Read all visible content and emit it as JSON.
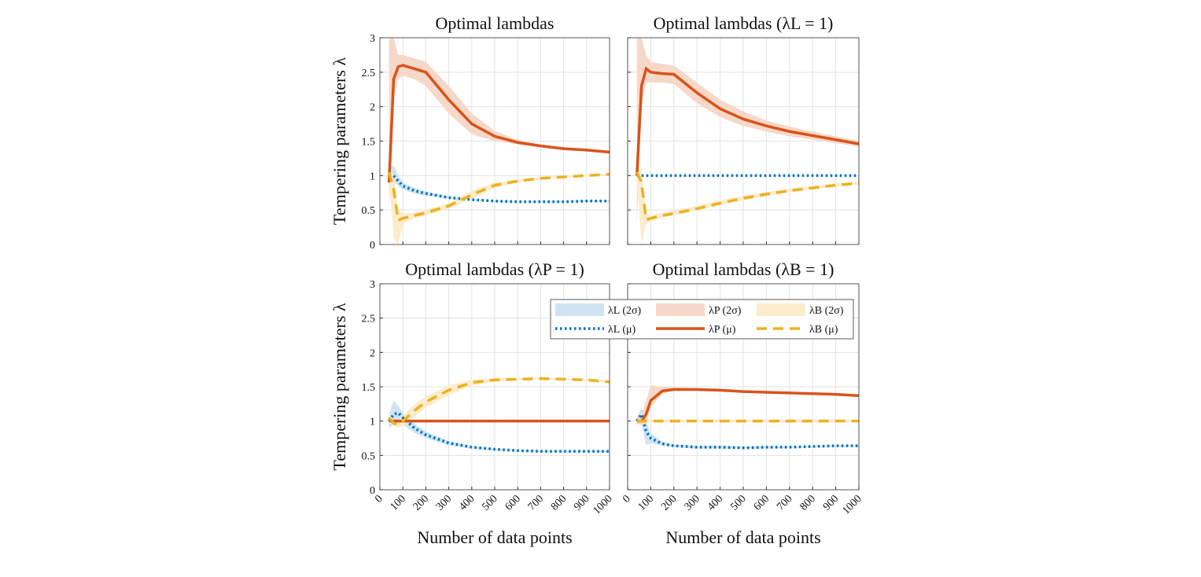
{
  "chart_data": [
    {
      "type": "line",
      "title": "Optimal lambdas",
      "ylabel": "Tempering parameters λ",
      "x": [
        40,
        60,
        80,
        100,
        150,
        200,
        300,
        400,
        500,
        600,
        700,
        800,
        900,
        1000
      ],
      "xlim": [
        0,
        1000
      ],
      "xticks": [
        0,
        100,
        200,
        300,
        400,
        500,
        600,
        700,
        800,
        900,
        1000
      ],
      "ylim": [
        0,
        3
      ],
      "yticks": [
        0,
        0.5,
        1,
        1.5,
        2,
        2.5,
        3
      ],
      "grid": true,
      "series": [
        {
          "kind": "band",
          "color": "#cfe3f3",
          "lower": [
            0.9,
            0.9,
            0.85,
            0.8,
            0.74,
            0.71,
            0.66,
            0.64,
            0.62,
            0.61,
            0.61,
            0.61,
            0.62,
            0.62
          ],
          "upper": [
            1.1,
            1.15,
            1.0,
            0.9,
            0.82,
            0.77,
            0.7,
            0.66,
            0.64,
            0.63,
            0.63,
            0.63,
            0.64,
            0.64
          ]
        },
        {
          "kind": "band",
          "color": "#f6d8c9",
          "lower": [
            0.5,
            2.1,
            2.4,
            2.45,
            2.4,
            2.3,
            1.9,
            1.6,
            1.5,
            1.45,
            1.41,
            1.37,
            1.35,
            1.32
          ],
          "upper": [
            3,
            3,
            2.75,
            2.75,
            2.7,
            2.65,
            2.3,
            1.9,
            1.65,
            1.52,
            1.45,
            1.41,
            1.39,
            1.36
          ]
        },
        {
          "kind": "band",
          "color": "#fbeccb",
          "lower": [
            0.95,
            0.1,
            0,
            0.3,
            0.38,
            0.42,
            0.52,
            0.66,
            0.82,
            0.9,
            0.94,
            0.97,
            0.99,
            1.01
          ],
          "upper": [
            1.1,
            1.0,
            0.5,
            0.45,
            0.46,
            0.5,
            0.6,
            0.78,
            0.9,
            0.94,
            0.98,
            1.0,
            1.02,
            1.03
          ]
        },
        {
          "kind": "line",
          "style": "dotted",
          "color": "#0072bd",
          "values": [
            1.0,
            1.0,
            0.92,
            0.85,
            0.78,
            0.74,
            0.68,
            0.65,
            0.63,
            0.62,
            0.62,
            0.62,
            0.63,
            0.63
          ]
        },
        {
          "kind": "line",
          "style": "solid",
          "color": "#d95319",
          "values": [
            0.9,
            2.4,
            2.58,
            2.6,
            2.55,
            2.5,
            2.1,
            1.75,
            1.57,
            1.48,
            1.43,
            1.39,
            1.37,
            1.34
          ]
        },
        {
          "kind": "line",
          "style": "dashed",
          "color": "#edb120",
          "values": [
            1.05,
            0.8,
            0.35,
            0.38,
            0.42,
            0.46,
            0.56,
            0.72,
            0.86,
            0.92,
            0.96,
            0.98,
            1.0,
            1.02
          ]
        }
      ]
    },
    {
      "type": "line",
      "title": "Optimal lambdas (λL = 1)",
      "x": [
        40,
        60,
        80,
        100,
        150,
        200,
        300,
        400,
        500,
        600,
        700,
        800,
        900,
        1000
      ],
      "xlim": [
        0,
        1000
      ],
      "xticks": [
        0,
        100,
        200,
        300,
        400,
        500,
        600,
        700,
        800,
        900,
        1000
      ],
      "ylim": [
        0,
        3
      ],
      "yticks": [
        0,
        0.5,
        1,
        1.5,
        2,
        2.5,
        3
      ],
      "grid": true,
      "series": [
        {
          "kind": "band",
          "color": "#f6d8c9",
          "lower": [
            0.3,
            2.0,
            2.35,
            2.35,
            2.35,
            2.33,
            2.05,
            1.85,
            1.72,
            1.64,
            1.57,
            1.52,
            1.47,
            1.42
          ],
          "upper": [
            3,
            3,
            2.75,
            2.65,
            2.62,
            2.6,
            2.35,
            2.1,
            1.93,
            1.8,
            1.71,
            1.64,
            1.57,
            1.5
          ]
        },
        {
          "kind": "band",
          "color": "#fbeccb",
          "lower": [
            0.95,
            0,
            0.3,
            0.34,
            0.39,
            0.42,
            0.49,
            0.57,
            0.64,
            0.7,
            0.76,
            0.8,
            0.84,
            0.87
          ],
          "upper": [
            1.1,
            1.1,
            0.45,
            0.43,
            0.46,
            0.49,
            0.56,
            0.64,
            0.71,
            0.76,
            0.81,
            0.85,
            0.89,
            0.91
          ]
        },
        {
          "kind": "line",
          "style": "dotted",
          "color": "#0072bd",
          "values": [
            1,
            1,
            1,
            1,
            1,
            1,
            1,
            1,
            1,
            1,
            1,
            1,
            1,
            1
          ]
        },
        {
          "kind": "line",
          "style": "solid",
          "color": "#d95319",
          "values": [
            1.0,
            2.3,
            2.55,
            2.5,
            2.48,
            2.47,
            2.2,
            1.97,
            1.82,
            1.72,
            1.64,
            1.58,
            1.52,
            1.46
          ]
        },
        {
          "kind": "line",
          "style": "dashed",
          "color": "#edb120",
          "values": [
            1.05,
            0.9,
            0.36,
            0.38,
            0.42,
            0.45,
            0.52,
            0.6,
            0.67,
            0.73,
            0.78,
            0.82,
            0.86,
            0.89
          ]
        }
      ]
    },
    {
      "type": "line",
      "title": "Optimal lambdas (λP = 1)",
      "ylabel": "Tempering parameters λ",
      "xlabel": "Number of data points",
      "x": [
        40,
        60,
        80,
        100,
        150,
        200,
        300,
        400,
        500,
        600,
        700,
        800,
        900,
        1000
      ],
      "xlim": [
        0,
        1000
      ],
      "xticks": [
        0,
        100,
        200,
        300,
        400,
        500,
        600,
        700,
        800,
        900,
        1000
      ],
      "ylim": [
        0,
        3
      ],
      "yticks": [
        0,
        0.5,
        1,
        1.5,
        2,
        2.5,
        3
      ],
      "grid": true,
      "series": [
        {
          "kind": "band",
          "color": "#cfe3f3",
          "lower": [
            0.9,
            0.95,
            1.0,
            0.95,
            0.83,
            0.75,
            0.65,
            0.6,
            0.57,
            0.56,
            0.55,
            0.55,
            0.55,
            0.55
          ],
          "upper": [
            1.1,
            1.3,
            1.22,
            1.12,
            0.96,
            0.85,
            0.71,
            0.64,
            0.6,
            0.58,
            0.57,
            0.57,
            0.57,
            0.57
          ]
        },
        {
          "kind": "band",
          "color": "#fbeccb",
          "lower": [
            1.0,
            0.93,
            0.9,
            0.93,
            1.06,
            1.2,
            1.38,
            1.52,
            1.57,
            1.6,
            1.61,
            1.6,
            1.59,
            1.56
          ],
          "upper": [
            1.1,
            1.02,
            1.02,
            1.08,
            1.24,
            1.36,
            1.52,
            1.6,
            1.63,
            1.63,
            1.63,
            1.62,
            1.61,
            1.59
          ]
        },
        {
          "kind": "line",
          "style": "dotted",
          "color": "#0072bd",
          "values": [
            1.0,
            1.1,
            1.12,
            1.05,
            0.9,
            0.8,
            0.68,
            0.62,
            0.59,
            0.57,
            0.56,
            0.56,
            0.56,
            0.56
          ]
        },
        {
          "kind": "line",
          "style": "solid",
          "color": "#d95319",
          "values": [
            1,
            1,
            1,
            1,
            1,
            1,
            1,
            1,
            1,
            1,
            1,
            1,
            1,
            1
          ]
        },
        {
          "kind": "line",
          "style": "dashed",
          "color": "#edb120",
          "values": [
            1.05,
            0.97,
            0.95,
            1.0,
            1.15,
            1.28,
            1.45,
            1.56,
            1.6,
            1.61,
            1.62,
            1.61,
            1.6,
            1.57
          ]
        }
      ]
    },
    {
      "type": "line",
      "title": "Optimal lambdas (λB = 1)",
      "xlabel": "Number of data points",
      "x": [
        40,
        60,
        80,
        100,
        150,
        200,
        300,
        400,
        500,
        600,
        700,
        800,
        900,
        1000
      ],
      "xlim": [
        0,
        1000
      ],
      "xticks": [
        0,
        100,
        200,
        300,
        400,
        500,
        600,
        700,
        800,
        900,
        1000
      ],
      "ylim": [
        0,
        3
      ],
      "yticks": [
        0,
        0.5,
        1,
        1.5,
        2,
        2.5,
        3
      ],
      "grid": true,
      "series": [
        {
          "name": "λL (2σ)",
          "kind": "band",
          "color": "#cfe3f3",
          "lower": [
            0.95,
            0.95,
            0.65,
            0.68,
            0.64,
            0.62,
            0.6,
            0.6,
            0.6,
            0.6,
            0.61,
            0.62,
            0.63,
            0.63
          ],
          "upper": [
            1.05,
            1.2,
            1.0,
            0.82,
            0.7,
            0.66,
            0.64,
            0.64,
            0.63,
            0.63,
            0.63,
            0.64,
            0.65,
            0.65
          ]
        },
        {
          "name": "λP (2σ)",
          "kind": "band",
          "color": "#f6d8c9",
          "lower": [
            0.95,
            0.95,
            0.95,
            1.2,
            1.4,
            1.44,
            1.45,
            1.44,
            1.42,
            1.41,
            1.4,
            1.39,
            1.38,
            1.36
          ],
          "upper": [
            1.05,
            1.1,
            1.3,
            1.52,
            1.5,
            1.49,
            1.48,
            1.47,
            1.45,
            1.43,
            1.42,
            1.41,
            1.4,
            1.38
          ]
        },
        {
          "name": "λB (2σ)",
          "kind": "band",
          "color": "#fbeccb",
          "lower": [
            0.98,
            0.98,
            0.98,
            0.98,
            0.98,
            0.98,
            0.98,
            0.98,
            0.98,
            0.98,
            0.98,
            0.98,
            0.98,
            0.98
          ],
          "upper": [
            1.02,
            1.02,
            1.02,
            1.02,
            1.02,
            1.02,
            1.02,
            1.02,
            1.02,
            1.02,
            1.02,
            1.02,
            1.02,
            1.02
          ]
        },
        {
          "name": "λL (μ)",
          "kind": "line",
          "style": "dotted",
          "color": "#0072bd",
          "values": [
            1.0,
            1.1,
            0.85,
            0.75,
            0.67,
            0.64,
            0.62,
            0.62,
            0.61,
            0.62,
            0.62,
            0.63,
            0.64,
            0.64
          ]
        },
        {
          "name": "λP (μ)",
          "kind": "line",
          "style": "solid",
          "color": "#d95319",
          "values": [
            1.0,
            1.0,
            1.1,
            1.3,
            1.44,
            1.46,
            1.46,
            1.45,
            1.43,
            1.42,
            1.41,
            1.4,
            1.39,
            1.37
          ]
        },
        {
          "name": "λB (μ)",
          "kind": "line",
          "style": "dashed",
          "color": "#edb120",
          "values": [
            1,
            1,
            1,
            1,
            1,
            1,
            1,
            1,
            1,
            1,
            1,
            1,
            1,
            1
          ]
        }
      ]
    }
  ]
}
